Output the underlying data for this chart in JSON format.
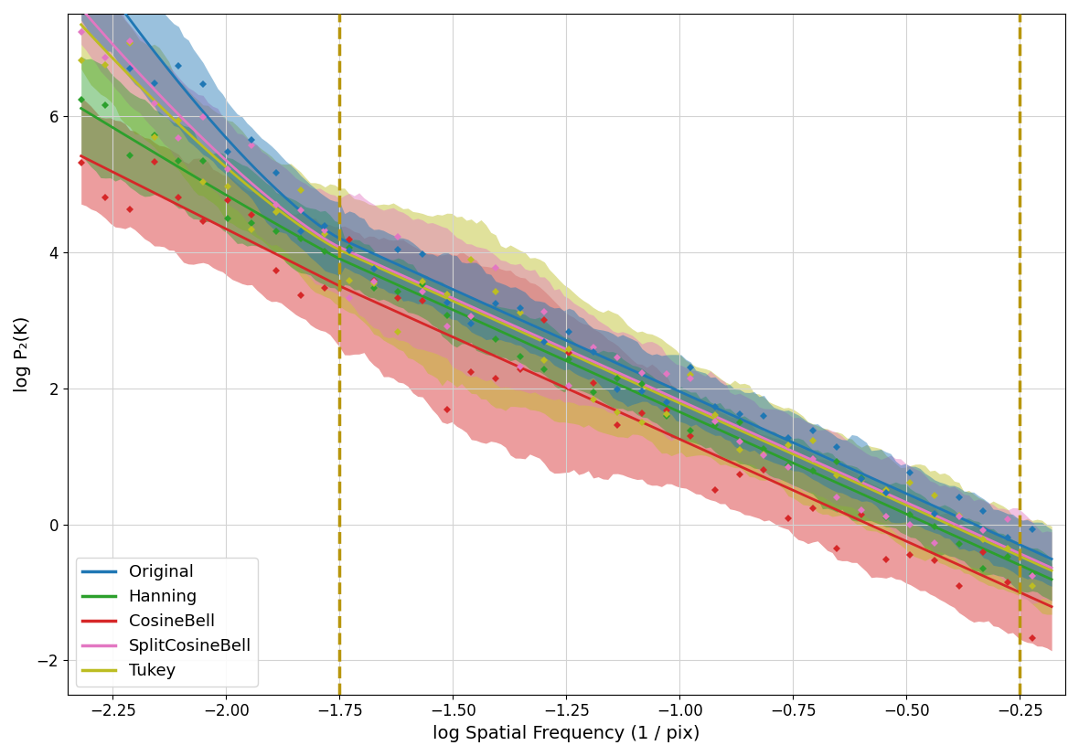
{
  "xlabel": "log Spatial Frequency (1 / pix)",
  "ylabel": "log P₂(K)",
  "xlim": [
    -2.35,
    -0.15
  ],
  "ylim": [
    -2.5,
    7.5
  ],
  "xticks": [
    -2.25,
    -2.0,
    -1.75,
    -1.5,
    -1.25,
    -1.0,
    -0.75,
    -0.5,
    -0.25
  ],
  "yticks": [
    -2,
    0,
    2,
    4,
    6
  ],
  "vline1": -1.75,
  "vline2": -0.25,
  "vline_color": "#b8960c",
  "series_colors": {
    "Original": "#1f77b4",
    "Hanning": "#2ca02c",
    "CosineBell": "#d62728",
    "SplitCosineBell": "#e377c2",
    "Tukey": "#bcbd22"
  },
  "fill_alpha": 0.45,
  "line_width": 2.0,
  "marker": "D",
  "marker_size": 4,
  "x_start": -2.32,
  "x_end": -0.18,
  "n_points": 200,
  "slope": -3.0,
  "intercepts": {
    "Original": -1.05,
    "Hanning": -1.35,
    "CosineBell": -1.75,
    "SplitCosineBell": -1.18,
    "Tukey": -1.22
  }
}
